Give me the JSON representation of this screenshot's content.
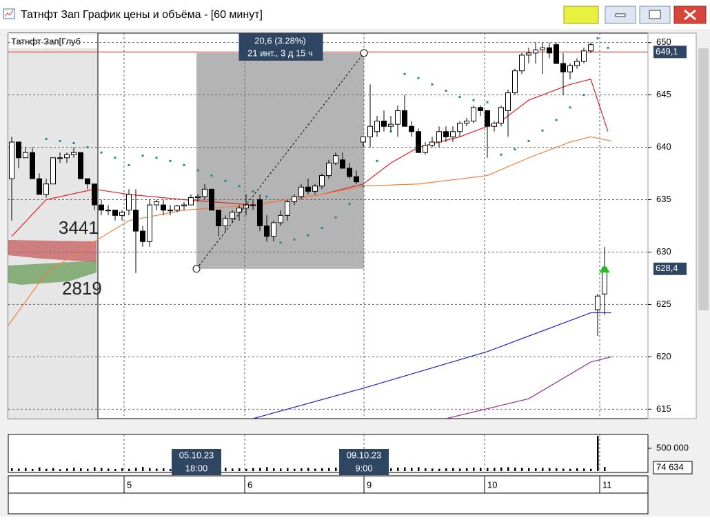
{
  "window_title": "Татнфт Зап График цены и объёма - [60 минут]",
  "chart_data": [
    {
      "type": "candlestick",
      "title": "Татнфт Зап[Глуб",
      "xlim": [
        -0.5,
        92.3
      ],
      "ylim": [
        614.1,
        650.9
      ],
      "yticks": [
        615,
        620,
        625,
        630,
        635,
        640,
        645,
        650
      ],
      "xticks": [
        {
          "value": 16.3,
          "label": "5"
        },
        {
          "value": 33.8,
          "label": "6"
        },
        {
          "value": 51.1,
          "label": "9"
        },
        {
          "value": 68.6,
          "label": "10"
        },
        {
          "value": 85.3,
          "label": "11"
        }
      ],
      "grid": true,
      "open": [
        637,
        640.5,
        639,
        639.5,
        637,
        635.5,
        636.5,
        639,
        639,
        639.3,
        639.5,
        637,
        636.5,
        634.5,
        634,
        634,
        633.5,
        634,
        634,
        632,
        631,
        634.5,
        634.5,
        634,
        634,
        634.4,
        634.5,
        635.2,
        635.3,
        636,
        634,
        632.5,
        633.2,
        633.8,
        634.2,
        634.5,
        635,
        632.5,
        631.5,
        632.8,
        633.5,
        634.8,
        635.3,
        636.2,
        635.8,
        636.3,
        637.3,
        638.5,
        638.8,
        638,
        637.2,
        640.5,
        641,
        641.5,
        642.5,
        642,
        642.2,
        643.5,
        642,
        641.5,
        639.5,
        640.2,
        640.5,
        641.5,
        641,
        641.5,
        642.3,
        642.5,
        643.8,
        643.5,
        642,
        642.3,
        643.5,
        645.2,
        647.3,
        648.8,
        649,
        649.3,
        649.5,
        649.8,
        648,
        647.2,
        647.8,
        648.2,
        649.2,
        624.5,
        626
      ],
      "high": [
        641,
        640.5,
        640,
        640,
        637.5,
        637,
        639,
        639.5,
        639.5,
        640,
        639.5,
        637,
        636.5,
        635,
        634.5,
        634,
        634,
        636,
        636,
        632.5,
        635,
        635,
        635,
        634.5,
        634.5,
        634.8,
        635.5,
        635.5,
        636.5,
        636,
        634,
        633.5,
        634,
        634.5,
        635.5,
        635,
        635.5,
        633.5,
        633,
        634,
        635,
        635.5,
        636.5,
        637,
        636.5,
        637.5,
        638.8,
        639.5,
        639.5,
        638.5,
        637.8,
        641,
        646,
        643,
        643.5,
        643,
        644,
        645,
        642.5,
        641.8,
        640.5,
        641,
        642,
        642,
        642,
        642.5,
        642.8,
        644,
        644,
        643.5,
        642.5,
        644,
        645.5,
        647.5,
        649,
        649.5,
        650,
        650,
        650,
        650,
        649,
        648,
        648.5,
        649.5,
        650,
        626,
        630.5
      ],
      "low": [
        633,
        638,
        639,
        637,
        635.5,
        635.2,
        636.5,
        638.5,
        638.5,
        639,
        637,
        636,
        634,
        633.5,
        633.5,
        633,
        633,
        633.5,
        628,
        630.5,
        630.5,
        634,
        633.5,
        633.5,
        633.8,
        634,
        634.5,
        634.8,
        635,
        634,
        631.5,
        632,
        632.8,
        633,
        633.5,
        634,
        632,
        631,
        631,
        632.5,
        633,
        634.5,
        635,
        635.5,
        635.5,
        636,
        637,
        638.3,
        638,
        637,
        636.5,
        640,
        640,
        641,
        641.5,
        641.5,
        641,
        642,
        641,
        639.5,
        639.3,
        640,
        640,
        640.5,
        640.5,
        641,
        642,
        642.3,
        643,
        639,
        641.5,
        642,
        641,
        645,
        647,
        648,
        648,
        647,
        648.5,
        648,
        645,
        646.5,
        647.5,
        648,
        649,
        622,
        624
      ],
      "close": [
        640.5,
        639,
        639.5,
        637,
        635.5,
        636.5,
        639,
        639,
        639.3,
        639.5,
        637,
        636.5,
        634.5,
        634,
        634,
        633.5,
        633.8,
        635.5,
        632,
        631,
        634.5,
        634.8,
        634,
        634,
        634.4,
        634.5,
        635.2,
        635.3,
        636,
        634,
        632.5,
        633.2,
        633.8,
        634.2,
        634.5,
        634.5,
        632.5,
        631.5,
        632.8,
        633.5,
        634.8,
        635.3,
        636.2,
        635.8,
        636.3,
        637.3,
        638.5,
        639.2,
        638,
        637.2,
        636.7,
        641,
        642,
        642.5,
        642,
        642.2,
        643.5,
        642,
        641.5,
        639.5,
        640.2,
        640.5,
        641.5,
        641,
        641.5,
        642.3,
        642.5,
        643.8,
        643.5,
        642,
        642.3,
        643.8,
        645.2,
        647.3,
        648.8,
        649,
        649.3,
        649.5,
        649,
        648,
        647.2,
        647.8,
        648.2,
        649.2,
        649.8,
        625.8,
        628.5
      ],
      "lines": [
        {
          "color": "#e02020",
          "x": [
            0,
            5,
            12,
            17,
            25,
            35,
            45,
            51,
            55,
            59,
            65,
            71,
            75,
            81,
            84,
            86.5
          ],
          "values": [
            631.5,
            635,
            636,
            635.5,
            635,
            634.5,
            635.5,
            636.5,
            638.5,
            640,
            641,
            642.5,
            644.5,
            646,
            646.5,
            641.5
          ]
        },
        {
          "color": "#f08040",
          "x": [
            -0.5,
            5,
            12,
            17,
            25,
            35,
            45,
            51,
            59,
            69,
            75,
            81,
            84,
            87
          ],
          "values": [
            623,
            628,
            631,
            633,
            634,
            634.5,
            635.5,
            636.3,
            636.5,
            637.3,
            639,
            640.5,
            641,
            640.6
          ]
        },
        {
          "color": "#2020c0",
          "x": [
            35,
            51,
            69,
            84,
            87
          ],
          "values": [
            614.1,
            617,
            620.5,
            624.2,
            624.2
          ]
        },
        {
          "color": "#9030a0",
          "x": [
            63,
            75,
            84,
            87
          ],
          "values": [
            614.1,
            616,
            619.5,
            620
          ]
        }
      ],
      "sar": {
        "color": "#1f8a8a",
        "x": [
          5,
          7,
          9,
          11,
          13,
          15,
          17,
          19,
          21,
          23,
          25,
          27,
          29,
          31,
          33,
          35,
          37,
          39,
          41,
          43,
          45,
          47,
          49,
          51,
          53,
          55,
          57,
          59,
          61,
          63,
          65,
          67,
          69,
          71,
          73,
          75,
          77,
          79,
          81,
          83,
          85,
          86.5
        ],
        "values": [
          640.8,
          640.6,
          640.4,
          640,
          639.5,
          639,
          638.3,
          639.2,
          639,
          638.7,
          638.3,
          637.8,
          637.3,
          636.8,
          636.3,
          635.8,
          635.3,
          630.9,
          631.2,
          631.6,
          632.3,
          633.3,
          634.6,
          636.3,
          638.7,
          641.5,
          647,
          646.6,
          646,
          645.4,
          644.8,
          644.5,
          644.3,
          639.3,
          639.8,
          640.6,
          641.6,
          642.6,
          643.8,
          645,
          650.4,
          649.5
        ]
      },
      "price_markers": [
        {
          "value": 649.1,
          "label": "649,1",
          "color": "#e02020"
        },
        {
          "value": 628.4,
          "label": "628,4",
          "color": "#00a000"
        }
      ],
      "profile_labels": [
        "3441",
        "2819"
      ],
      "measure": {
        "from": [
          26.8,
          628.4
        ],
        "to": [
          51.1,
          649.0
        ],
        "labels": [
          "20,6 (3.28%)",
          "21 инт., 3 д 15 ч"
        ]
      }
    },
    {
      "type": "bar",
      "color": "#000000",
      "ylim": [
        0,
        803000
      ],
      "yticks": [
        {
          "value": 500000,
          "label": "500 000"
        }
      ],
      "values": [
        60000,
        55000,
        70000,
        45000,
        80000,
        50000,
        65000,
        40000,
        55000,
        75000,
        60000,
        50000,
        85000,
        70000,
        55000,
        45000,
        60000,
        50000,
        70000,
        90000,
        65000,
        55000,
        60000,
        45000,
        50000,
        55000,
        65000,
        60000,
        50000,
        75000,
        80000,
        70000,
        55000,
        60000,
        50000,
        65000,
        70000,
        85000,
        60000,
        55000,
        65000,
        50000,
        60000,
        70000,
        55000,
        60000,
        65000,
        75000,
        60000,
        55000,
        50000,
        95000,
        110000,
        70000,
        65000,
        60000,
        75000,
        80000,
        70000,
        85000,
        60000,
        55000,
        50000,
        60000,
        65000,
        55000,
        60000,
        75000,
        70000,
        65000,
        70000,
        80000,
        85000,
        75000,
        70000,
        65000,
        60000,
        70000,
        65000,
        60000,
        55000,
        50000,
        60000,
        55000,
        50000,
        770000,
        90000
      ],
      "marker": {
        "value": 74634,
        "label": "74 634"
      },
      "cursor_labels": [
        {
          "x": 26.8,
          "date": "05.10.23",
          "time": "18:00"
        },
        {
          "x": 51.1,
          "date": "09.10.23",
          "time": "9:00"
        }
      ]
    }
  ]
}
